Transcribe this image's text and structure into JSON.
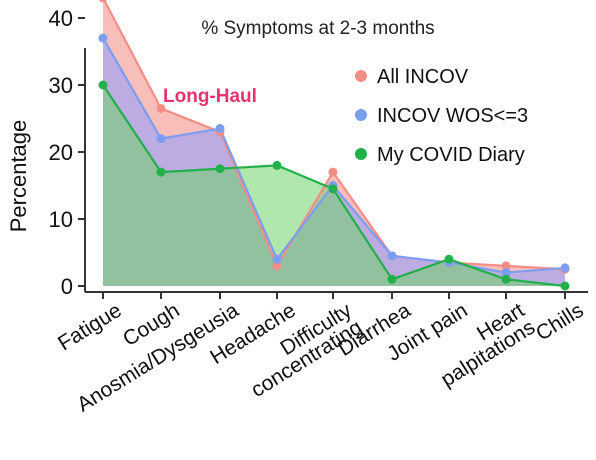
{
  "chart_data": {
    "type": "area",
    "title": "% Symptoms at 2-3 months",
    "annotation": "Long-Haul",
    "ylabel": "Percentage",
    "xlabel": "",
    "ylim": [
      0,
      44
    ],
    "yticks": [
      "0",
      "10",
      "20",
      "30",
      "40"
    ],
    "grid": false,
    "legend_position": "top-right",
    "categories": [
      [
        "Fatigue"
      ],
      [
        "Cough"
      ],
      [
        "Anosmia/Dysgeusia"
      ],
      [
        "Headache"
      ],
      [
        "Difficulty",
        "concentrating"
      ],
      [
        "Diarrhea"
      ],
      [
        "Joint pain"
      ],
      [
        "Heart",
        "palpitations"
      ],
      [
        "Chills"
      ]
    ],
    "series": [
      {
        "name": "All INCOV",
        "color": "#f28e86",
        "fill": "#f6a9a3",
        "values": [
          43,
          26.5,
          23,
          3,
          17,
          4.5,
          3.5,
          3,
          2.5
        ]
      },
      {
        "name": "INCOV WOS<=3",
        "color": "#7b9ef2",
        "fill": "#a9a6ee",
        "values": [
          37,
          22,
          23.5,
          4,
          15,
          4.5,
          3.5,
          2,
          2.7
        ]
      },
      {
        "name": "My COVID Diary",
        "color": "#22b04a",
        "fill": "#6fd46a",
        "values": [
          30,
          17,
          17.5,
          18,
          14.5,
          1,
          4,
          1,
          0
        ]
      }
    ]
  }
}
